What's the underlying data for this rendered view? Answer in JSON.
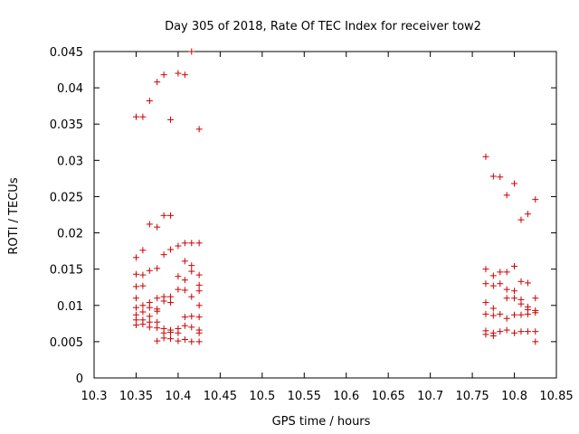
{
  "chart_data": {
    "type": "scatter",
    "title": "Day 305 of 2018, Rate Of TEC Index for receiver tow2",
    "xlabel": "GPS time / hours",
    "ylabel": "ROTI / TECUs",
    "xlim": [
      10.3,
      10.85
    ],
    "ylim": [
      0,
      0.045
    ],
    "grid": false,
    "marker": "+",
    "color": "#cc0000",
    "xticks": [
      "10.3",
      "10.35",
      "10.4",
      "10.45",
      "10.5",
      "10.55",
      "10.6",
      "10.65",
      "10.7",
      "10.75",
      "10.8",
      "10.85"
    ],
    "yticks": [
      "0",
      "0.005",
      "0.01",
      "0.015",
      "0.02",
      "0.025",
      "0.03",
      "0.035",
      "0.04",
      "0.045"
    ],
    "series": [
      {
        "name": "tow2",
        "points": [
          [
            10.35,
            0.036
          ],
          [
            10.358,
            0.036
          ],
          [
            10.366,
            0.0382
          ],
          [
            10.375,
            0.0408
          ],
          [
            10.383,
            0.0418
          ],
          [
            10.391,
            0.0356
          ],
          [
            10.4,
            0.042
          ],
          [
            10.408,
            0.0418
          ],
          [
            10.416,
            0.045
          ],
          [
            10.425,
            0.0343
          ],
          [
            10.366,
            0.0212
          ],
          [
            10.375,
            0.0208
          ],
          [
            10.383,
            0.0224
          ],
          [
            10.391,
            0.0224
          ],
          [
            10.35,
            0.0166
          ],
          [
            10.358,
            0.0176
          ],
          [
            10.366,
            0.0148
          ],
          [
            10.375,
            0.0151
          ],
          [
            10.383,
            0.017
          ],
          [
            10.391,
            0.0177
          ],
          [
            10.4,
            0.0182
          ],
          [
            10.408,
            0.0186
          ],
          [
            10.416,
            0.0186
          ],
          [
            10.425,
            0.0186
          ],
          [
            10.408,
            0.0161
          ],
          [
            10.416,
            0.0155
          ],
          [
            10.35,
            0.0143
          ],
          [
            10.358,
            0.0142
          ],
          [
            10.35,
            0.0126
          ],
          [
            10.358,
            0.0127
          ],
          [
            10.366,
            0.0104
          ],
          [
            10.375,
            0.011
          ],
          [
            10.383,
            0.0112
          ],
          [
            10.391,
            0.0112
          ],
          [
            10.4,
            0.014
          ],
          [
            10.408,
            0.0135
          ],
          [
            10.416,
            0.0147
          ],
          [
            10.425,
            0.0142
          ],
          [
            10.4,
            0.0122
          ],
          [
            10.408,
            0.0121
          ],
          [
            10.416,
            0.0112
          ],
          [
            10.425,
            0.0128
          ],
          [
            10.425,
            0.012
          ],
          [
            10.35,
            0.011
          ],
          [
            10.35,
            0.0097
          ],
          [
            10.358,
            0.01
          ],
          [
            10.366,
            0.0097
          ],
          [
            10.375,
            0.0095
          ],
          [
            10.383,
            0.0106
          ],
          [
            10.391,
            0.0104
          ],
          [
            10.35,
            0.0087
          ],
          [
            10.358,
            0.0091
          ],
          [
            10.366,
            0.0085
          ],
          [
            10.375,
            0.0092
          ],
          [
            10.35,
            0.008
          ],
          [
            10.358,
            0.008
          ],
          [
            10.366,
            0.0077
          ],
          [
            10.375,
            0.0077
          ],
          [
            10.35,
            0.0073
          ],
          [
            10.358,
            0.0074
          ],
          [
            10.366,
            0.007
          ],
          [
            10.375,
            0.0069
          ],
          [
            10.383,
            0.0068
          ],
          [
            10.391,
            0.0066
          ],
          [
            10.4,
            0.0068
          ],
          [
            10.408,
            0.0072
          ],
          [
            10.416,
            0.007
          ],
          [
            10.425,
            0.0066
          ],
          [
            10.383,
            0.0062
          ],
          [
            10.391,
            0.0063
          ],
          [
            10.4,
            0.0062
          ],
          [
            10.425,
            0.0062
          ],
          [
            10.375,
            0.0051
          ],
          [
            10.383,
            0.0055
          ],
          [
            10.391,
            0.0054
          ],
          [
            10.4,
            0.0051
          ],
          [
            10.408,
            0.0053
          ],
          [
            10.416,
            0.005
          ],
          [
            10.425,
            0.005
          ],
          [
            10.408,
            0.0084
          ],
          [
            10.416,
            0.0085
          ],
          [
            10.425,
            0.0084
          ],
          [
            10.425,
            0.01
          ],
          [
            10.766,
            0.0305
          ],
          [
            10.775,
            0.0278
          ],
          [
            10.783,
            0.0277
          ],
          [
            10.791,
            0.0252
          ],
          [
            10.8,
            0.0268
          ],
          [
            10.808,
            0.0218
          ],
          [
            10.816,
            0.0226
          ],
          [
            10.825,
            0.0246
          ],
          [
            10.766,
            0.015
          ],
          [
            10.775,
            0.0141
          ],
          [
            10.783,
            0.0146
          ],
          [
            10.791,
            0.0146
          ],
          [
            10.8,
            0.0154
          ],
          [
            10.808,
            0.0133
          ],
          [
            10.816,
            0.0131
          ],
          [
            10.766,
            0.013
          ],
          [
            10.775,
            0.0127
          ],
          [
            10.783,
            0.013
          ],
          [
            10.791,
            0.0122
          ],
          [
            10.8,
            0.012
          ],
          [
            10.766,
            0.0104
          ],
          [
            10.775,
            0.0096
          ],
          [
            10.791,
            0.011
          ],
          [
            10.8,
            0.011
          ],
          [
            10.808,
            0.0102
          ],
          [
            10.816,
            0.0098
          ],
          [
            10.825,
            0.011
          ],
          [
            10.808,
            0.0108
          ],
          [
            10.766,
            0.0088
          ],
          [
            10.775,
            0.0086
          ],
          [
            10.783,
            0.0088
          ],
          [
            10.791,
            0.0082
          ],
          [
            10.8,
            0.0087
          ],
          [
            10.808,
            0.0087
          ],
          [
            10.816,
            0.0088
          ],
          [
            10.825,
            0.0093
          ],
          [
            10.825,
            0.009
          ],
          [
            10.816,
            0.0094
          ],
          [
            10.766,
            0.0065
          ],
          [
            10.775,
            0.0062
          ],
          [
            10.783,
            0.0064
          ],
          [
            10.791,
            0.0066
          ],
          [
            10.8,
            0.0062
          ],
          [
            10.808,
            0.0064
          ],
          [
            10.816,
            0.0064
          ],
          [
            10.825,
            0.0064
          ],
          [
            10.766,
            0.006
          ],
          [
            10.775,
            0.0058
          ],
          [
            10.825,
            0.005
          ]
        ]
      }
    ]
  }
}
